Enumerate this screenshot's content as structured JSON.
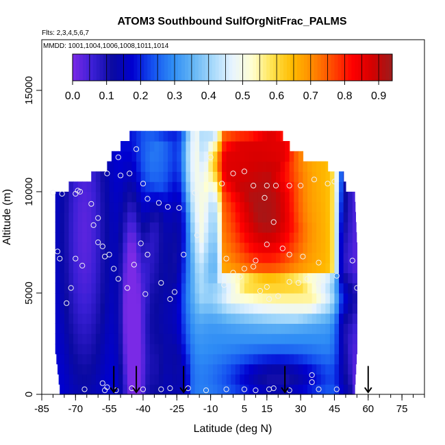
{
  "chart_data": {
    "type": "heatmap",
    "title": "ATOM3 Southbound SulfOrgNitFrac_PALMS",
    "subtitle": "Flts: 2,3,4,5,6,7",
    "mmdd": "MMDD: 1001,1004,1006,1008,1011,1014",
    "xlabel": "Latitude (deg N)",
    "ylabel": "Altitude (m)",
    "xlim": [
      -85,
      85
    ],
    "ylim": [
      0,
      17500
    ],
    "x_ticks": [
      -85,
      -70,
      -55,
      -40,
      -25,
      -10,
      5,
      15,
      30,
      45,
      60,
      75
    ],
    "x_tick_labels": [
      "-85",
      "-70",
      "-55",
      "-40",
      "-25",
      "-10",
      "5",
      "15",
      "30",
      "45",
      "60",
      "75"
    ],
    "x_minor_step": 5,
    "y_ticks": [
      0,
      5000,
      10000,
      15000
    ],
    "y_tick_labels": [
      "0",
      "5000",
      "10000",
      "15000"
    ],
    "colorbar": {
      "min": 0.0,
      "max": 0.94,
      "ticks": [
        0.0,
        0.1,
        0.2,
        0.3,
        0.4,
        0.5,
        0.6,
        0.7,
        0.8,
        0.9
      ],
      "tick_labels": [
        "0.0",
        "0.1",
        "0.2",
        "0.3",
        "0.4",
        "0.5",
        "0.6",
        "0.7",
        "0.8",
        "0.9"
      ],
      "colors": [
        "#7a2ae6",
        "#3a1fd6",
        "#0a0aa0",
        "#0000d0",
        "#1450f0",
        "#2e8cf5",
        "#62b4f5",
        "#a6d9fb",
        "#e8f4ff",
        "#ffffd0",
        "#ffe34d",
        "#ffbb00",
        "#ff8a00",
        "#ff4a00",
        "#ff0000",
        "#d40000",
        "#9b1c1c"
      ]
    },
    "field": {
      "lat_min": -79,
      "lat_max": 55,
      "lat_step": 2,
      "alt_step": 500,
      "coverage": [
        {
          "alt": 0,
          "lat_min": -77,
          "lat_max": 54
        },
        {
          "alt": 2000,
          "lat_min": -79,
          "lat_max": 55
        },
        {
          "alt": 7000,
          "lat_min": -79,
          "lat_max": 55
        },
        {
          "alt": 9500,
          "lat_min": -79,
          "lat_max": 54
        },
        {
          "alt": 10000,
          "lat_min": -73,
          "lat_max": 50
        },
        {
          "alt": 10500,
          "lat_min": -63,
          "lat_max": 49
        },
        {
          "alt": 11000,
          "lat_min": -56,
          "lat_max": 42
        },
        {
          "alt": 11500,
          "lat_min": -54,
          "lat_max": 31
        },
        {
          "alt": 12000,
          "lat_min": -50,
          "lat_max": 25
        },
        {
          "alt": 12500,
          "lat_min": -46,
          "lat_max": 22
        }
      ],
      "features": [
        {
          "lat": -66,
          "alt": 8000,
          "dlat": 12,
          "dalt": 9000,
          "value": 0.03
        },
        {
          "lat": -45,
          "alt": 4000,
          "dlat": 5,
          "dalt": 6000,
          "value": -0.06
        },
        {
          "lat": -35,
          "alt": 3000,
          "dlat": 5,
          "dalt": 6000,
          "value": 0.1
        },
        {
          "lat": -25,
          "alt": 5000,
          "dlat": 6,
          "dalt": 8000,
          "value": 0.1
        },
        {
          "lat": -33,
          "alt": 11500,
          "dlat": 10,
          "dalt": 2000,
          "value": 0.3
        },
        {
          "lat": -18,
          "alt": 11500,
          "dlat": 4,
          "dalt": 2000,
          "value": 0.5
        },
        {
          "lat": -13,
          "alt": 12000,
          "dlat": 2,
          "dalt": 1500,
          "value": 0.3
        },
        {
          "lat": -19,
          "alt": 5000,
          "dlat": 4,
          "dalt": 3000,
          "value": 0.35
        },
        {
          "lat": -15,
          "alt": 9000,
          "dlat": 4,
          "dalt": 3500,
          "value": 0.5
        },
        {
          "lat": 15,
          "alt": 9000,
          "dlat": 17,
          "dalt": 3000,
          "value": 0.93
        },
        {
          "lat": 2,
          "alt": 11500,
          "dlat": 12,
          "dalt": 1500,
          "value": 0.85
        },
        {
          "lat": 18,
          "alt": 12200,
          "dlat": 8,
          "dalt": 900,
          "value": 0.85
        },
        {
          "lat": 35,
          "alt": 9500,
          "dlat": 10,
          "dalt": 2500,
          "value": 0.62
        },
        {
          "lat": 20,
          "alt": 4800,
          "dlat": 25,
          "dalt": 1000,
          "value": 0.62
        },
        {
          "lat": 10,
          "alt": 3500,
          "dlat": 30,
          "dalt": 1500,
          "value": 0.3
        },
        {
          "lat": 20,
          "alt": 800,
          "dlat": 22,
          "dalt": 1200,
          "value": 0.1
        },
        {
          "lat": 50,
          "alt": 7000,
          "dlat": 4,
          "dalt": 8000,
          "value": 0.05
        },
        {
          "lat": 55,
          "alt": 5000,
          "dlat": 3,
          "dalt": 9000,
          "value": 0.02
        }
      ]
    },
    "points": [
      [
        -80,
        9950
      ],
      [
        -70,
        9900
      ],
      [
        -69,
        10050
      ],
      [
        -68,
        10000
      ],
      [
        -76,
        9900
      ],
      [
        -78,
        7050
      ],
      [
        -77,
        6700
      ],
      [
        -70,
        6700
      ],
      [
        -67,
        6350
      ],
      [
        -72,
        5250
      ],
      [
        -74,
        4500
      ],
      [
        -63,
        9400
      ],
      [
        -62,
        8350
      ],
      [
        -60,
        8700
      ],
      [
        -60,
        7500
      ],
      [
        -58,
        7300
      ],
      [
        -57,
        6800
      ],
      [
        -55,
        6900
      ],
      [
        -53,
        6200
      ],
      [
        -51,
        5700
      ],
      [
        -47,
        5250
      ],
      [
        -44,
        6400
      ],
      [
        -56,
        10900
      ],
      [
        -51,
        11700
      ],
      [
        -43,
        12100
      ],
      [
        -50,
        10800
      ],
      [
        -46,
        10900
      ],
      [
        -40,
        10400
      ],
      [
        -38,
        9650
      ],
      [
        -33,
        9450
      ],
      [
        -29,
        9250
      ],
      [
        -24,
        9200
      ],
      [
        -41,
        7450
      ],
      [
        -38,
        6900
      ],
      [
        -39,
        4950
      ],
      [
        -32,
        5500
      ],
      [
        -28,
        4700
      ],
      [
        -26,
        5050
      ],
      [
        -22,
        6900
      ],
      [
        -16,
        7850
      ],
      [
        -17,
        9950
      ],
      [
        -10,
        11700
      ],
      [
        -66,
        250
      ],
      [
        -58,
        550
      ],
      [
        -56,
        350
      ],
      [
        -57,
        200
      ],
      [
        -52,
        200
      ],
      [
        -45,
        300
      ],
      [
        -40,
        250
      ],
      [
        -32,
        250
      ],
      [
        -28,
        300
      ],
      [
        -20,
        300
      ],
      [
        -12,
        200
      ],
      [
        -3,
        250
      ],
      [
        5,
        250
      ],
      [
        10,
        200
      ],
      [
        16,
        250
      ],
      [
        18,
        300
      ],
      [
        25,
        200
      ],
      [
        35,
        600
      ],
      [
        38,
        250
      ],
      [
        46,
        250
      ],
      [
        35,
        950
      ],
      [
        -5,
        10400
      ],
      [
        0,
        10900
      ],
      [
        5,
        11000
      ],
      [
        9,
        10300
      ],
      [
        15,
        10300
      ],
      [
        19,
        10300
      ],
      [
        25,
        10300
      ],
      [
        30,
        10300
      ],
      [
        36,
        10600
      ],
      [
        42,
        10400
      ],
      [
        -3,
        6700
      ],
      [
        5,
        6200
      ],
      [
        9,
        6300
      ],
      [
        10,
        6600
      ],
      [
        15,
        7400
      ],
      [
        18,
        8500
      ],
      [
        14,
        9700
      ],
      [
        22,
        7200
      ],
      [
        25,
        6900
      ],
      [
        31,
        6800
      ],
      [
        38,
        6500
      ],
      [
        -4,
        5400
      ],
      [
        0,
        6000
      ],
      [
        3,
        5800
      ],
      [
        12,
        5100
      ],
      [
        15,
        5300
      ],
      [
        16,
        4700
      ],
      [
        25,
        5550
      ],
      [
        29,
        5500
      ],
      [
        33,
        5700
      ],
      [
        38,
        5450
      ],
      [
        46,
        5850
      ],
      [
        45,
        10500
      ],
      [
        53,
        6600
      ],
      [
        55,
        5250
      ],
      [
        20,
        4850
      ]
    ],
    "arrows": [
      -53,
      -43,
      -22,
      23,
      60
    ]
  }
}
